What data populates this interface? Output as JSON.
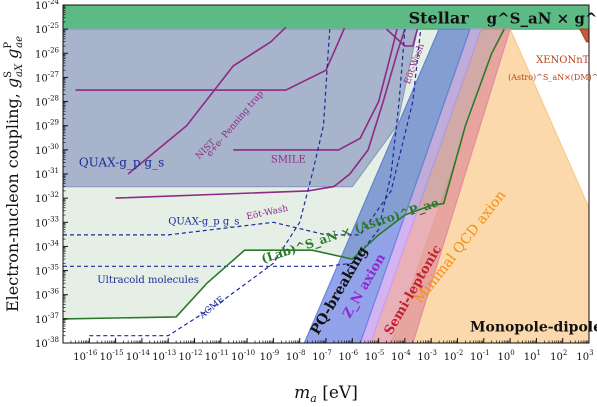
{
  "chart_data": {
    "type": "area",
    "xlabel": "m_a [eV]",
    "ylabel": "Electron-nucleon coupling, g^S_aX g^P_ae",
    "x_scale": "log",
    "y_scale": "log",
    "xlim": [
      1e-17,
      1000.0
    ],
    "ylim": [
      1e-38,
      1e-24
    ],
    "x_ticks": [
      {
        "value": 1e-16,
        "label": "10^-16"
      },
      {
        "value": 1e-15,
        "label": "10^-15"
      },
      {
        "value": 1e-14,
        "label": "10^-14"
      },
      {
        "value": 1e-13,
        "label": "10^-13"
      },
      {
        "value": 1e-12,
        "label": "10^-12"
      },
      {
        "value": 1e-11,
        "label": "10^-11"
      },
      {
        "value": 1e-10,
        "label": "10^-10"
      },
      {
        "value": 1e-09,
        "label": "10^-9"
      },
      {
        "value": 1e-08,
        "label": "10^-8"
      },
      {
        "value": 1e-07,
        "label": "10^-7"
      },
      {
        "value": 1e-06,
        "label": "10^-6"
      },
      {
        "value": 1e-05,
        "label": "10^-5"
      },
      {
        "value": 0.0001,
        "label": "10^-4"
      },
      {
        "value": 0.001,
        "label": "10^-3"
      },
      {
        "value": 0.01,
        "label": "10^-2"
      },
      {
        "value": 0.1,
        "label": "10^-1"
      },
      {
        "value": 1,
        "label": "10^0"
      },
      {
        "value": 10,
        "label": "10^1"
      },
      {
        "value": 100,
        "label": "10^2"
      },
      {
        "value": 1000,
        "label": "10^3"
      }
    ],
    "y_ticks": [
      {
        "value": 1e-38,
        "label": "10^-38"
      },
      {
        "value": 1e-37,
        "label": "10^-37"
      },
      {
        "value": 1e-36,
        "label": "10^-36"
      },
      {
        "value": 1e-35,
        "label": "10^-35"
      },
      {
        "value": 1e-34,
        "label": "10^-34"
      },
      {
        "value": 1e-33,
        "label": "10^-33"
      },
      {
        "value": 1e-32,
        "label": "10^-32"
      },
      {
        "value": 1e-31,
        "label": "10^-31"
      },
      {
        "value": 1e-30,
        "label": "10^-30"
      },
      {
        "value": 1e-29,
        "label": "10^-29"
      },
      {
        "value": 1e-28,
        "label": "10^-28"
      },
      {
        "value": 1e-27,
        "label": "10^-27"
      },
      {
        "value": 1e-26,
        "label": "10^-26"
      },
      {
        "value": 1e-25,
        "label": "10^-25"
      },
      {
        "value": 1e-24,
        "label": "10^-24"
      }
    ],
    "grid": false,
    "regions": [
      {
        "name": "Stellar g^S_aN × g^P_ae",
        "color": "#3fae6e",
        "kind": "fill",
        "points": [
          [
            1e-17,
            1e-25
          ],
          [
            1000.0,
            1e-25
          ],
          [
            1000.0,
            1e-24
          ],
          [
            1e-17,
            1e-24
          ]
        ]
      },
      {
        "name": "Minimal QCD axion",
        "color": "#f9c98a",
        "kind": "fill",
        "points": [
          [
            3e-05,
            1e-38
          ],
          [
            1000.0,
            1e-38
          ],
          [
            1000.0,
            4e-33
          ],
          [
            1,
            1e-25
          ],
          [
            0.5,
            1e-25
          ]
        ]
      },
      {
        "name": "Semi-leptonic",
        "color": "#e08f9a",
        "kind": "fill",
        "points": [
          [
            5e-06,
            1e-38
          ],
          [
            0.0002,
            1e-38
          ],
          [
            1,
            1e-25
          ],
          [
            0.08,
            1e-25
          ]
        ]
      },
      {
        "name": "Z_N axion",
        "color": "#c9a0f0",
        "kind": "fill",
        "points": [
          [
            2e-06,
            1e-38
          ],
          [
            5e-06,
            1e-38
          ],
          [
            0.08,
            1e-25
          ],
          [
            0.03,
            1e-25
          ]
        ]
      },
      {
        "name": "PQ-breaking",
        "color": "#6d84e3",
        "kind": "fill",
        "points": [
          [
            1.5e-08,
            1e-38
          ],
          [
            2e-06,
            1e-38
          ],
          [
            0.03,
            1e-25
          ],
          [
            0.002,
            1e-25
          ]
        ]
      },
      {
        "name": "QUAX-g_p g_s (region)",
        "color": "#9b9fd6",
        "kind": "fill",
        "points": [
          [
            1e-17,
            3e-32
          ],
          [
            1e-06,
            3e-32
          ],
          [
            5e-05,
            1e-29
          ],
          [
            0.0003,
            1e-25
          ],
          [
            1e-17,
            1e-25
          ]
        ]
      },
      {
        "name": "(Lab)^S_aN × (Astro)^P_ae",
        "color": "#2a7a2a",
        "kind": "fill-light",
        "points": [
          [
            1e-17,
            1e-37
          ],
          [
            2e-13,
            1.2e-37
          ],
          [
            3e-12,
            3e-36
          ],
          [
            8e-11,
            7e-35
          ],
          [
            3e-08,
            7e-35
          ],
          [
            1e-06,
            3e-35
          ],
          [
            1e-05,
            3e-34
          ],
          [
            0.0001,
            2e-33
          ],
          [
            0.001,
            5e-33
          ],
          [
            0.003,
            6e-33
          ],
          [
            0.02,
            1e-29
          ],
          [
            0.2,
            1e-26
          ],
          [
            0.6,
            1e-25
          ],
          [
            1e-17,
            1e-25
          ]
        ]
      },
      {
        "name": "XENONnT (Astro)^S_aN × (DM)^P_ae",
        "color": "#b2431c",
        "kind": "fill",
        "points": [
          [
            450,
            1e-25
          ],
          [
            800,
            3e-26
          ],
          [
            1000,
            3e-26
          ],
          [
            1000,
            1e-25
          ]
        ]
      }
    ],
    "curves": [
      {
        "name": "NIST",
        "color": "#8e2a86",
        "style": "solid",
        "points": [
          [
            3e-15,
            1e-31
          ],
          [
            5e-13,
            1e-29
          ],
          [
            3e-11,
            3e-27
          ],
          [
            8e-10,
            3e-26
          ],
          [
            3e-09,
            1.2e-25
          ]
        ]
      },
      {
        "name": "e+e- Penning trap",
        "color": "#8e2a86",
        "style": "solid",
        "points": [
          [
            3e-17,
            3e-28
          ],
          [
            3e-09,
            3e-28
          ],
          [
            1e-07,
            2e-27
          ],
          [
            3e-07,
            3e-26
          ],
          [
            5e-07,
            1.1e-25
          ]
        ]
      },
      {
        "name": "SMILE",
        "color": "#8e2a86",
        "style": "solid",
        "points": [
          [
            3e-11,
            1e-30
          ],
          [
            3e-07,
            1e-30
          ],
          [
            2e-06,
            3e-30
          ],
          [
            1e-05,
            1e-28
          ],
          [
            3e-05,
            1e-26
          ],
          [
            5e-05,
            1e-25
          ]
        ]
      },
      {
        "name": "Eöt-Wash",
        "color": "#8e2a86",
        "style": "solid",
        "points": [
          [
            1e-15,
            1e-32
          ],
          [
            2e-08,
            2e-32
          ],
          [
            2e-07,
            3e-32
          ],
          [
            8e-07,
            1e-31
          ],
          [
            4e-06,
            1e-30
          ],
          [
            1.5e-05,
            1e-28
          ],
          [
            5e-05,
            1e-26
          ],
          [
            0.0001,
            1e-25
          ]
        ]
      },
      {
        "name": "Eöt-Wash (upper)",
        "color": "#8e2a86",
        "style": "solid",
        "points": [
          [
            2e-05,
            1e-25
          ],
          [
            0.0001,
            2e-26
          ],
          [
            0.0002,
            2e-26
          ],
          [
            0.0003,
            1e-25
          ]
        ]
      },
      {
        "name": "QUAX-g_p g_s (dashed)",
        "color": "#1c2a9c",
        "style": "dashed",
        "points": [
          [
            1e-17,
            3e-34
          ],
          [
            1e-13,
            3e-34
          ],
          [
            1e-09,
            1e-33
          ],
          [
            1e-07,
            3e-34
          ],
          [
            2e-06,
            3e-34
          ],
          [
            3e-05,
            2e-32
          ],
          [
            0.0002,
            1e-28
          ],
          [
            0.0004,
            1e-25
          ]
        ]
      },
      {
        "name": "Ultracold molecules",
        "color": "#1c2a9c",
        "style": "dashed",
        "points": [
          [
            1e-17,
            1.5e-35
          ],
          [
            1e-07,
            1.5e-35
          ],
          [
            1e-06,
            2e-35
          ],
          [
            1e-05,
            5e-34
          ],
          [
            3e-05,
            1e-31
          ],
          [
            6e-05,
            1e-28
          ],
          [
            0.0001,
            1e-25
          ]
        ]
      },
      {
        "name": "ACME",
        "color": "#1c2a9c",
        "style": "dashed",
        "points": [
          [
            1e-16,
            2e-38
          ],
          [
            1e-13,
            2e-38
          ],
          [
            1e-11,
            5e-37
          ],
          [
            1e-09,
            2e-35
          ],
          [
            1e-08,
            1e-33
          ],
          [
            3e-08,
            1e-31
          ],
          [
            8e-08,
            1e-29
          ],
          [
            1.2e-07,
            1e-26
          ],
          [
            1.4e-07,
            1e-25
          ]
        ]
      },
      {
        "name": "Lab x Astro boundary",
        "color": "#2a7a2a",
        "style": "solid",
        "points": [
          [
            1e-17,
            1e-37
          ],
          [
            2e-13,
            1.2e-37
          ],
          [
            3e-12,
            3e-36
          ],
          [
            8e-11,
            7e-35
          ],
          [
            3e-08,
            7e-35
          ],
          [
            1e-06,
            3e-35
          ],
          [
            1e-05,
            3e-34
          ],
          [
            0.0001,
            2e-33
          ],
          [
            0.001,
            5e-33
          ],
          [
            0.003,
            6e-33
          ],
          [
            0.02,
            1e-29
          ],
          [
            0.2,
            1e-26
          ],
          [
            0.6,
            1e-25
          ]
        ]
      }
    ],
    "labels": {
      "stellar": "Stellar",
      "stellar_formula": "g^S_aN × g^P_ae",
      "xenonnt": "XENONnT",
      "xenonnt_sub": "(Astro)^S_aN×(DM)^P_ae",
      "eot_wash_upper": "Eöt-Wash",
      "nist": "NIST",
      "penning": "e+e- Penning trap",
      "smile": "SMILE",
      "quax_big": "QUAX-g_p g_s",
      "eot_wash": "Eöt-Wash",
      "quax_small": "QUAX-g_p g_s",
      "lab_astro": "(Lab)^S_aN × (Astro)^P_ae",
      "ultracold": "Ultracold molecules",
      "acme": "ACME",
      "pq": "PQ-breaking",
      "zn": "Z_N axion",
      "semi": "Semi-leptonic",
      "qcd": "Minimal QCD axion",
      "monopole": "Monopole-dipole"
    }
  }
}
